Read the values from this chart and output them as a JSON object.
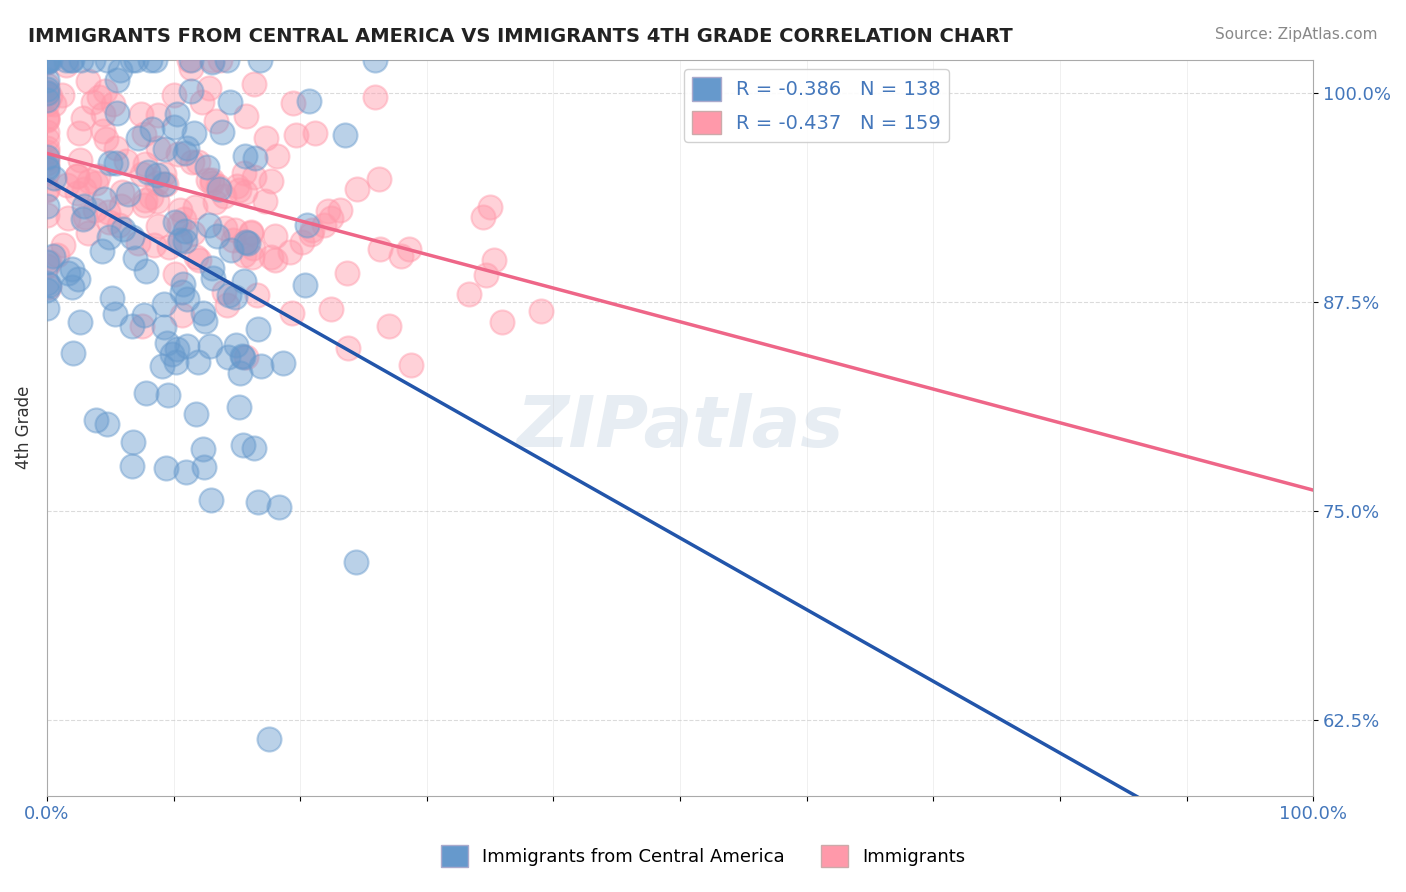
{
  "title": "IMMIGRANTS FROM CENTRAL AMERICA VS IMMIGRANTS 4TH GRADE CORRELATION CHART",
  "source": "Source: ZipAtlas.com",
  "xlabel": "",
  "ylabel": "4th Grade",
  "xlim": [
    0.0,
    1.0
  ],
  "ylim": [
    0.58,
    1.02
  ],
  "x_tick_labels": [
    "0.0%",
    "100.0%"
  ],
  "y_tick_labels": [
    "62.5%",
    "75.0%",
    "87.5%",
    "100.0%"
  ],
  "y_tick_values": [
    0.625,
    0.75,
    0.875,
    1.0
  ],
  "legend_r1": "R = -0.386",
  "legend_n1": "N = 138",
  "legend_r2": "R = -0.437",
  "legend_n2": "N = 159",
  "blue_color": "#6699CC",
  "pink_color": "#FF99AA",
  "blue_line_color": "#2255AA",
  "pink_line_color": "#EE6688",
  "watermark": "ZIPatlas",
  "background_color": "#FFFFFF",
  "seed": 42,
  "n_blue": 138,
  "n_pink": 159,
  "r_blue": -0.386,
  "r_pink": -0.437,
  "blue_intercept": 1.005,
  "blue_slope": -0.38,
  "pink_intercept": 0.985,
  "pink_slope": -0.18
}
